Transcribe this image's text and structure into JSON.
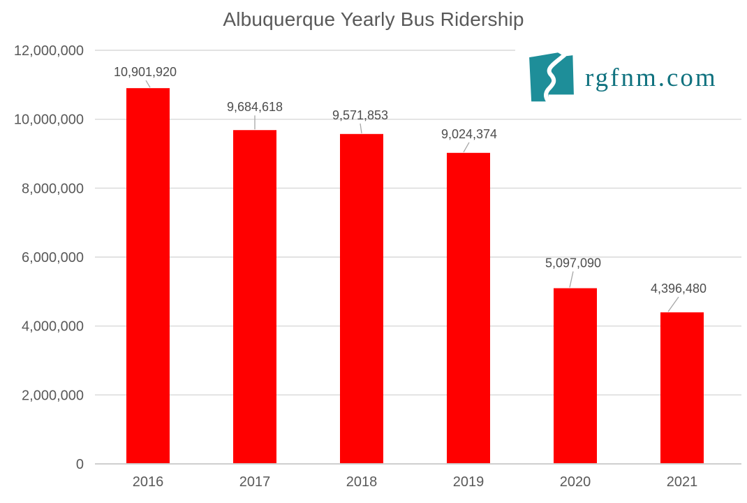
{
  "title": "Albuquerque Yearly Bus Ridership",
  "logo": {
    "text": "rgfnm.com",
    "icon": "new-mexico-river-icon",
    "icon_color": "#1e8e99",
    "text_color": "#10727f"
  },
  "colors": {
    "background": "#ffffff",
    "bar": "#ff0000",
    "title_text": "#595959",
    "axis_text": "#595959",
    "data_label_text": "#4d4d4d",
    "gridline": "#d9d9d9",
    "axis_line": "#bfbfbf",
    "leader_line": "#a6a6a6"
  },
  "chart_data": {
    "type": "bar",
    "title": "Albuquerque Yearly Bus Ridership",
    "categories": [
      "2016",
      "2017",
      "2018",
      "2019",
      "2020",
      "2021"
    ],
    "values": [
      10901920,
      9684618,
      9571853,
      9024374,
      5097090,
      4396480
    ],
    "data_labels": [
      "10,901,920",
      "9,684,618",
      "9,571,853",
      "9,024,374",
      "5,097,090",
      "4,396,480"
    ],
    "xlabel": "",
    "ylabel": "",
    "ylim": [
      0,
      12000000
    ],
    "ytick_interval": 2000000,
    "ytick_labels": [
      "0",
      "2,000,000",
      "4,000,000",
      "6,000,000",
      "8,000,000",
      "10,000,000",
      "12,000,000"
    ],
    "grid": true,
    "legend": false,
    "data_labels_have_leader_lines": true
  }
}
